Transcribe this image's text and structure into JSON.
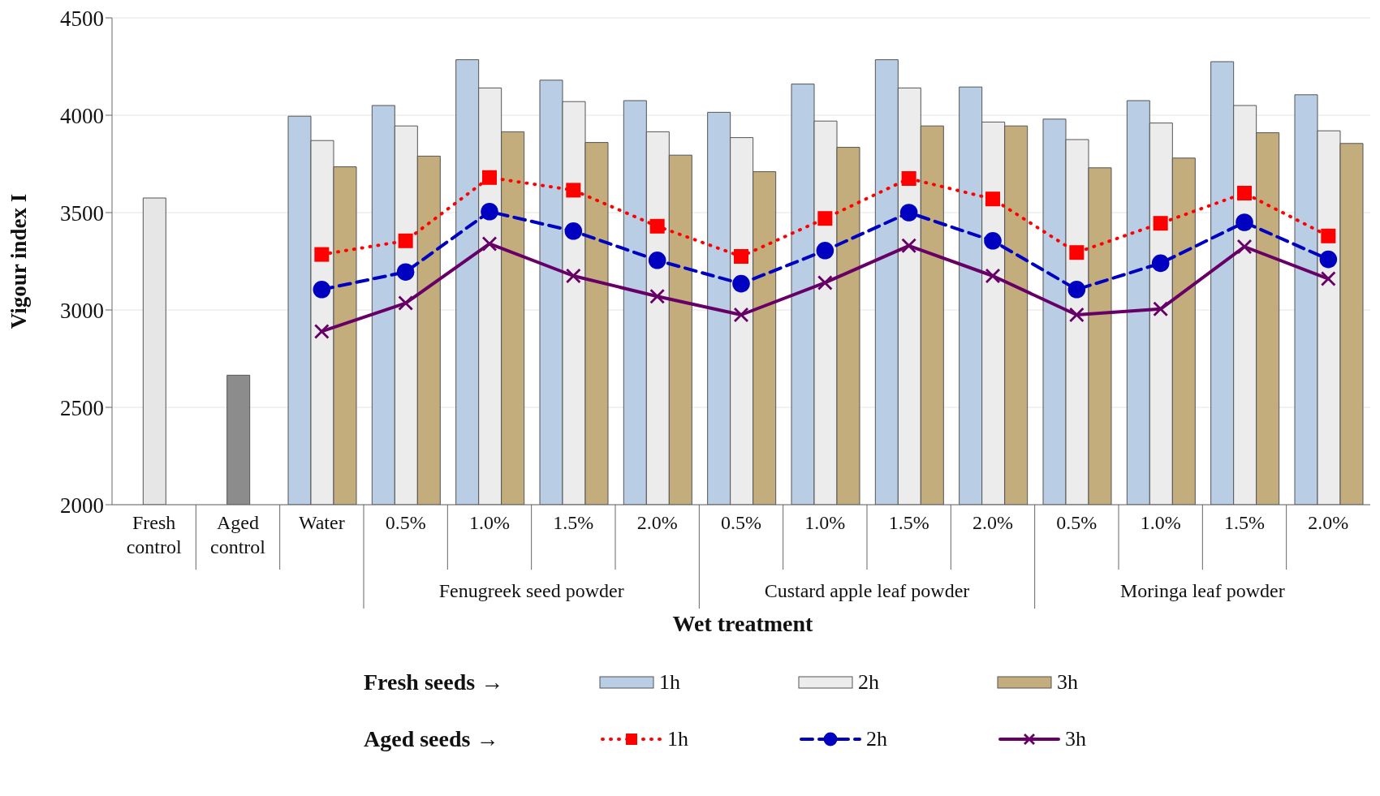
{
  "chart_data": {
    "type": "bar",
    "ylabel": "Vigour index I",
    "xlabel": "Wet treatment",
    "categories": [
      "Fresh control",
      "Aged control",
      "Water",
      "0.5%",
      "1.0%",
      "1.5%",
      "2.0%",
      "0.5%",
      "1.0%",
      "1.5%",
      "2.0%",
      "0.5%",
      "1.0%",
      "1.5%",
      "2.0%"
    ],
    "series": [
      {
        "color": "#e6e6e6",
        "values": [
          3575,
          null,
          null,
          null,
          null,
          null,
          null,
          null,
          null,
          null,
          null,
          null,
          null,
          null,
          null
        ]
      },
      {
        "color": "#8c8c8c",
        "values": [
          null,
          2665,
          null,
          null,
          null,
          null,
          null,
          null,
          null,
          null,
          null,
          null,
          null,
          null,
          null
        ]
      },
      {
        "name": "1h",
        "color": "#b9cde5",
        "values": [
          null,
          null,
          3995,
          4050,
          4285,
          4180,
          4075,
          4015,
          4160,
          4285,
          4145,
          3980,
          4075,
          4275,
          4105
        ]
      },
      {
        "name": "2h",
        "color": "#ececec",
        "values": [
          null,
          null,
          3870,
          3945,
          4140,
          4070,
          3915,
          3885,
          3970,
          4140,
          3965,
          3875,
          3960,
          4050,
          3920
        ]
      },
      {
        "name": "3h",
        "color": "#c4ad7c",
        "values": [
          null,
          null,
          3735,
          3790,
          3915,
          3860,
          3795,
          3710,
          3835,
          3945,
          3945,
          3730,
          3780,
          3910,
          3855
        ]
      },
      {
        "type": "line",
        "name": "1h",
        "color": "#ff0000",
        "line_style": "dotted",
        "marker": "square",
        "values": [
          null,
          null,
          3285,
          3355,
          3680,
          3615,
          3430,
          3275,
          3470,
          3675,
          3570,
          3295,
          3445,
          3600,
          3380
        ]
      },
      {
        "type": "line",
        "name": "2h",
        "color": "#0000c0",
        "line_style": "dashed",
        "marker": "circle",
        "values": [
          null,
          null,
          3105,
          3195,
          3505,
          3405,
          3255,
          3135,
          3305,
          3500,
          3355,
          3105,
          3240,
          3450,
          3260
        ]
      },
      {
        "type": "line",
        "name": "3h",
        "color": "#660066",
        "line_style": "solid",
        "marker": "cross",
        "values": [
          null,
          null,
          2890,
          3035,
          3340,
          3175,
          3070,
          2975,
          3140,
          3330,
          3175,
          2975,
          3005,
          3325,
          3160
        ]
      }
    ],
    "ylim": [
      2000,
      4500
    ],
    "yticks": [
      2000,
      2500,
      3000,
      3500,
      4000,
      4500
    ],
    "grid": "y",
    "legend": "bottom",
    "annotations": [
      "Fenugreek seed powder",
      "Custard apple leaf powder",
      "Moringa leaf powder",
      "Fresh seeds →",
      "Aged seeds →"
    ]
  }
}
